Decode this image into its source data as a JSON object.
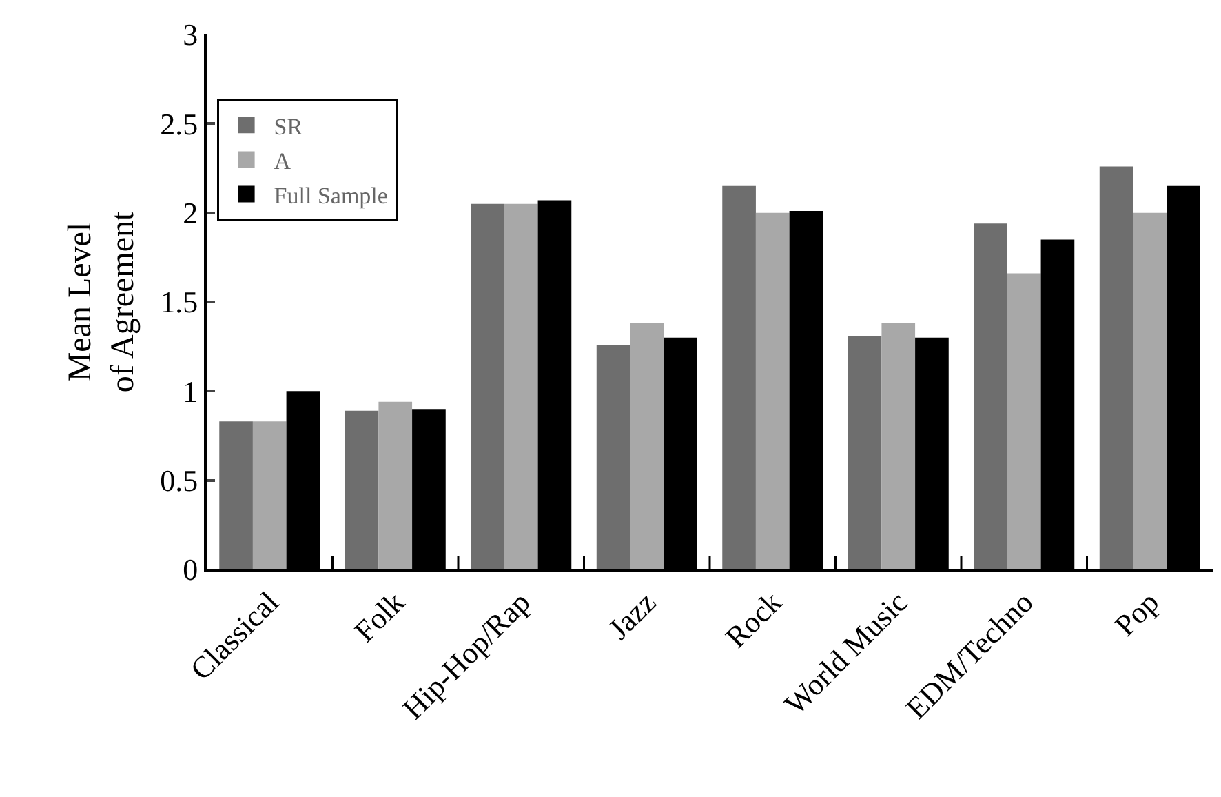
{
  "chart_data": {
    "type": "bar",
    "ylabel": "Mean Level\nof Agreement",
    "categories": [
      "Classical",
      "Folk",
      "Hip-Hop/Rap",
      "Jazz",
      "Rock",
      "World Music",
      "EDM/Techno",
      "Pop"
    ],
    "series": [
      {
        "name": "SR",
        "color": "#6e6e6e",
        "values": [
          0.83,
          0.89,
          2.05,
          1.26,
          2.15,
          1.31,
          1.94,
          2.26
        ]
      },
      {
        "name": "A",
        "color": "#a8a8a8",
        "values": [
          0.83,
          0.94,
          2.05,
          1.38,
          2.0,
          1.38,
          1.66,
          2.0
        ]
      },
      {
        "name": "Full Sample",
        "color": "#000000",
        "values": [
          1.0,
          0.9,
          2.07,
          1.3,
          2.01,
          1.3,
          1.85,
          2.15
        ]
      }
    ],
    "ylim": [
      0,
      3
    ],
    "yticks": [
      0,
      0.5,
      1,
      1.5,
      2,
      2.5,
      3
    ],
    "grid": false,
    "legend": "top left"
  }
}
